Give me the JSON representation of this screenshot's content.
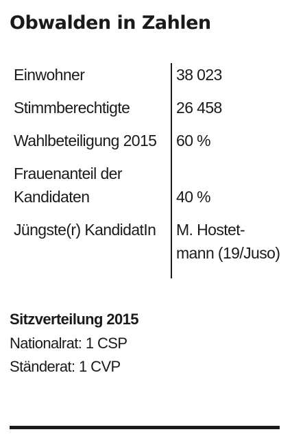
{
  "title": "Obwalden in Zahlen",
  "stats": [
    {
      "label": "Einwohner",
      "value": "38 023"
    },
    {
      "label": "Stimmberechtigte",
      "value": "26 458"
    },
    {
      "label": "Wahlbeteiligung 2015",
      "value": "60 %"
    },
    {
      "label_lines": [
        "Frauenanteil der",
        "Kandidaten"
      ],
      "value": "40 %"
    },
    {
      "label": "Jüngste(r) KandidatIn",
      "value_lines": [
        "M. Hostet-",
        "mann (19/Juso)"
      ]
    }
  ],
  "seats": {
    "title": "Sitzverteilung 2015",
    "items": [
      "Nationalrat: 1 CSP",
      "Ständerat: 1 CVP"
    ]
  }
}
